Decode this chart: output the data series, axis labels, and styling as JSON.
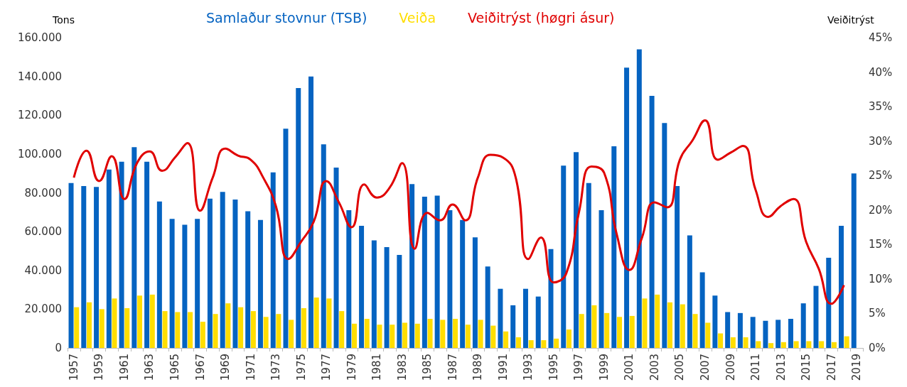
{
  "chart_data": {
    "type": "bar",
    "ylabel": "Tons",
    "y2label": "Veiðitrýst",
    "categories": [
      "1957",
      null,
      "1959",
      null,
      "1961",
      null,
      "1963",
      null,
      "1965",
      null,
      "1967",
      null,
      "1969",
      null,
      "1971",
      null,
      "1973",
      null,
      "1975",
      null,
      "1977",
      null,
      "1979",
      null,
      "1981",
      null,
      "1983",
      null,
      "1985",
      null,
      "1987",
      null,
      "1989",
      null,
      "1991",
      null,
      "1993",
      null,
      "1995",
      null,
      "1997",
      null,
      "1999",
      null,
      "2001",
      null,
      "2003",
      null,
      "2005",
      null,
      "2007",
      null,
      "2009",
      null,
      "2011",
      null,
      "2013",
      null,
      "2015",
      null,
      "2017",
      null,
      "2019"
    ],
    "series": [
      {
        "name": "Samlaður stovnur (TSB)",
        "color": "#0563c1",
        "values": [
          85000,
          83500,
          83000,
          92000,
          96000,
          103500,
          96000,
          75500,
          66500,
          63500,
          66500,
          77000,
          80500,
          76500,
          70500,
          66000,
          90500,
          113000,
          134000,
          140000,
          105000,
          93000,
          71000,
          63000,
          55500,
          52000,
          48000,
          84500,
          78000,
          78500,
          71000,
          66000,
          57000,
          42000,
          30500,
          22000,
          30500,
          26500,
          51000,
          94000,
          101000,
          85000,
          71000,
          104000,
          144500,
          154000,
          130000,
          116000,
          83500,
          58000,
          39000,
          27000,
          18500,
          18000,
          16000,
          14000,
          14500,
          15000,
          23000,
          32000,
          46500,
          63000,
          90000
        ]
      },
      {
        "name": "Veiða",
        "color": "#ffde00",
        "values": [
          21000,
          23500,
          20000,
          25500,
          20500,
          27000,
          27500,
          19000,
          18500,
          18500,
          13500,
          17500,
          23000,
          21000,
          19000,
          16000,
          17500,
          14500,
          20500,
          26000,
          25500,
          19000,
          12500,
          15000,
          12000,
          12000,
          13000,
          12500,
          15000,
          14500,
          15000,
          12000,
          14500,
          11500,
          8500,
          5500,
          4000,
          4000,
          4800,
          9500,
          17500,
          22000,
          18000,
          16000,
          16500,
          25500,
          27500,
          23500,
          22500,
          17500,
          13000,
          7500,
          5500,
          5500,
          3500,
          2500,
          3000,
          3500,
          3500,
          3500,
          3000,
          6000,
          null
        ]
      },
      {
        "name": "Veiðitrýst (høgri ásur)",
        "type": "line",
        "axis": "y2",
        "color": "#e00000",
        "values": [
          24.7,
          28.6,
          24.2,
          27.8,
          21.6,
          26.8,
          28.5,
          25.7,
          27.6,
          29.7,
          19.9,
          24.7,
          28.9,
          27.9,
          27.3,
          24.7,
          20.6,
          12.9,
          15.4,
          18.3,
          24.2,
          21.1,
          17.5,
          23.7,
          21.8,
          23.2,
          26.8,
          14.4,
          19.6,
          18.5,
          20.8,
          18.5,
          24.7,
          28.0,
          27.6,
          24.7,
          12.9,
          16.0,
          9.5,
          10.8,
          19.6,
          26.3,
          25.4,
          16.5,
          11.3,
          16.0,
          21.1,
          20.4,
          27.3,
          30.1,
          33.0,
          27.3,
          28.3,
          29.3,
          22.9,
          19.0,
          20.6,
          21.6,
          15.4,
          11.5,
          6.4,
          9.1,
          null
        ]
      }
    ],
    "ylim": [
      0,
      160000
    ],
    "yticks": [
      {
        "value": 0,
        "label": "0"
      },
      {
        "value": 20000,
        "label": "20.000"
      },
      {
        "value": 40000,
        "label": "40.000"
      },
      {
        "value": 60000,
        "label": "60.000"
      },
      {
        "value": 80000,
        "label": "80.000"
      },
      {
        "value": 100000,
        "label": "100.000"
      },
      {
        "value": 120000,
        "label": "120.000"
      },
      {
        "value": 140000,
        "label": "140.000"
      },
      {
        "value": 160000,
        "label": "160.000"
      }
    ],
    "y2lim": [
      0,
      45
    ],
    "y2ticks": [
      {
        "value": 0,
        "label": "0%"
      },
      {
        "value": 5,
        "label": "5%"
      },
      {
        "value": 10,
        "label": "10%"
      },
      {
        "value": 15,
        "label": "15%"
      },
      {
        "value": 20,
        "label": "20%"
      },
      {
        "value": 25,
        "label": "25%"
      },
      {
        "value": 30,
        "label": "30%"
      },
      {
        "value": 35,
        "label": "35%"
      },
      {
        "value": 40,
        "label": "40%"
      },
      {
        "value": 45,
        "label": "45%"
      }
    ],
    "grid": false,
    "legend": "top",
    "marker": "none"
  }
}
